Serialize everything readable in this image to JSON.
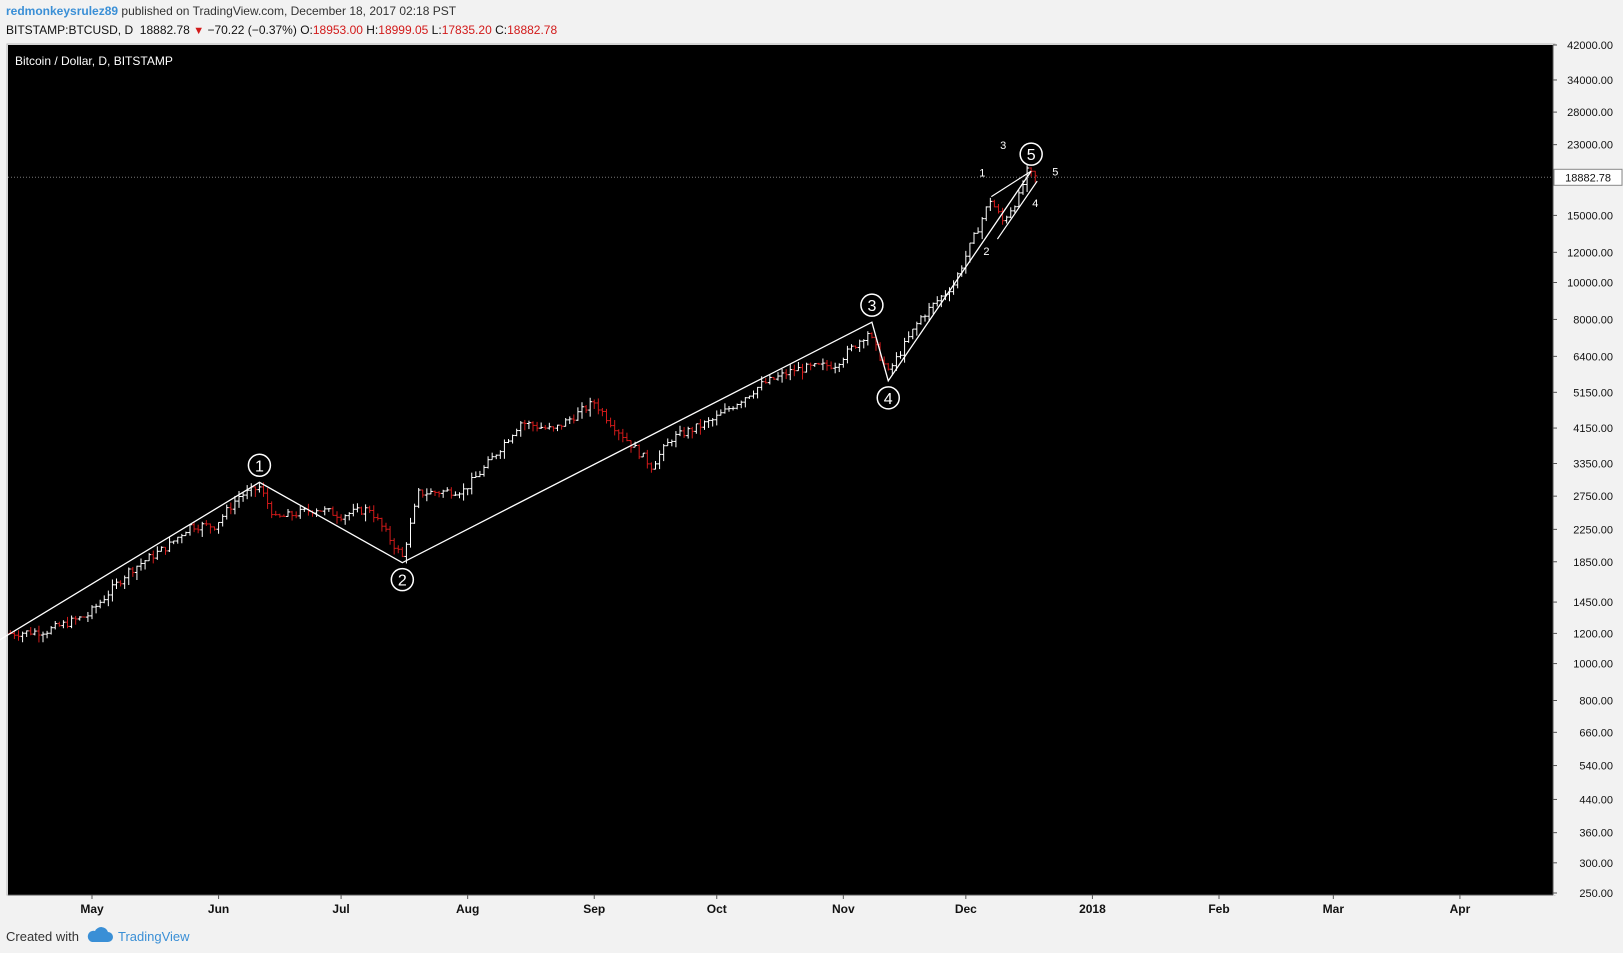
{
  "header": {
    "author": "redmonkeysrulez89",
    "published": "published on TradingView.com, December 18, 2017 02:18 PST",
    "symbol": "BITSTAMP:BTCUSD, D",
    "last": "18882.78",
    "change": "−70.22 (−0.37%)",
    "o_label": "O:",
    "o_value": "18953.00",
    "h_label": "H:",
    "h_value": "18999.05",
    "l_label": "L:",
    "l_value": "17835.20",
    "c_label": "C:",
    "c_value": "18882.78"
  },
  "footer": {
    "created_with": "Created with",
    "brand": "TradingView"
  },
  "colors": {
    "background": "#000000",
    "up": "#ffffff",
    "down": "#d21a1a",
    "wave": "#ffffff",
    "axis_text": "#111111"
  },
  "chart_data": {
    "type": "ohlc",
    "title": "Bitcoin / Dollar, D, BITSTAMP",
    "scale": "log",
    "ylim": [
      250,
      42000
    ],
    "y_ticks": [
      "42000.00",
      "34000.00",
      "28000.00",
      "23000.00",
      "15000.00",
      "12000.00",
      "10000.00",
      "8000.00",
      "6400.00",
      "5150.00",
      "4150.00",
      "3350.00",
      "2750.00",
      "2250.00",
      "1850.00",
      "1450.00",
      "1200.00",
      "1000.00",
      "800.00",
      "660.00",
      "540.00",
      "440.00",
      "360.00",
      "300.00",
      "250.00"
    ],
    "last_price_label": "18882.78",
    "x_labels": [
      {
        "label": "May",
        "date": "2017-05-01"
      },
      {
        "label": "Jun",
        "date": "2017-06-01"
      },
      {
        "label": "Jul",
        "date": "2017-07-01"
      },
      {
        "label": "Aug",
        "date": "2017-08-01"
      },
      {
        "label": "Sep",
        "date": "2017-09-01"
      },
      {
        "label": "Oct",
        "date": "2017-10-01"
      },
      {
        "label": "Nov",
        "date": "2017-11-01"
      },
      {
        "label": "Dec",
        "date": "2017-12-01"
      },
      {
        "label": "2018",
        "date": "2018-01-01"
      },
      {
        "label": "Feb",
        "date": "2018-02-01"
      },
      {
        "label": "Mar",
        "date": "2018-03-01"
      },
      {
        "label": "Apr",
        "date": "2018-04-01"
      }
    ],
    "price_path": [
      [
        "2017-04-11",
        1200
      ],
      [
        "2017-04-20",
        1220
      ],
      [
        "2017-04-30",
        1340
      ],
      [
        "2017-05-10",
        1750
      ],
      [
        "2017-05-20",
        2050
      ],
      [
        "2017-05-25",
        2300
      ],
      [
        "2017-05-31",
        2300
      ],
      [
        "2017-06-06",
        2750
      ],
      [
        "2017-06-11",
        2900
      ],
      [
        "2017-06-15",
        2400
      ],
      [
        "2017-06-25",
        2550
      ],
      [
        "2017-07-01",
        2450
      ],
      [
        "2017-07-08",
        2550
      ],
      [
        "2017-07-16",
        1900
      ],
      [
        "2017-07-20",
        2800
      ],
      [
        "2017-07-31",
        2850
      ],
      [
        "2017-08-05",
        3250
      ],
      [
        "2017-08-14",
        4300
      ],
      [
        "2017-08-22",
        4100
      ],
      [
        "2017-09-01",
        4850
      ],
      [
        "2017-09-05",
        4300
      ],
      [
        "2017-09-15",
        3300
      ],
      [
        "2017-09-20",
        3900
      ],
      [
        "2017-09-30",
        4350
      ],
      [
        "2017-10-12",
        5400
      ],
      [
        "2017-10-20",
        5900
      ],
      [
        "2017-10-30",
        6100
      ],
      [
        "2017-11-07",
        7400
      ],
      [
        "2017-11-12",
        5800
      ],
      [
        "2017-11-20",
        8100
      ],
      [
        "2017-11-28",
        9900
      ],
      [
        "2017-12-07",
        16500
      ],
      [
        "2017-12-10",
        14500
      ],
      [
        "2017-12-14",
        16800
      ],
      [
        "2017-12-16",
        19500
      ],
      [
        "2017-12-18",
        18882.78
      ]
    ],
    "waves": {
      "main": [
        {
          "date": "2017-04-07",
          "price": 1130
        },
        {
          "label": "1",
          "date": "2017-06-11",
          "price": 2990
        },
        {
          "label": "2",
          "date": "2017-07-16",
          "price": 1840
        },
        {
          "label": "3",
          "date": "2017-11-08",
          "price": 7870
        },
        {
          "label": "4",
          "date": "2017-11-12",
          "price": 5520
        },
        {
          "label": "5",
          "date": "2017-12-17",
          "price": 19600
        }
      ],
      "sub": [
        {
          "label": "1",
          "date": "2017-12-07",
          "price": 16800
        },
        {
          "label": "2",
          "date": "2017-12-08",
          "price": 13000
        },
        {
          "label": "3",
          "date": "2017-12-17",
          "price": 19600
        },
        {
          "label": "4",
          "date": "2017-12-18",
          "price": 18000
        },
        {
          "label": "5",
          "date": "2017-12-19",
          "price": 18882.78
        }
      ]
    }
  }
}
